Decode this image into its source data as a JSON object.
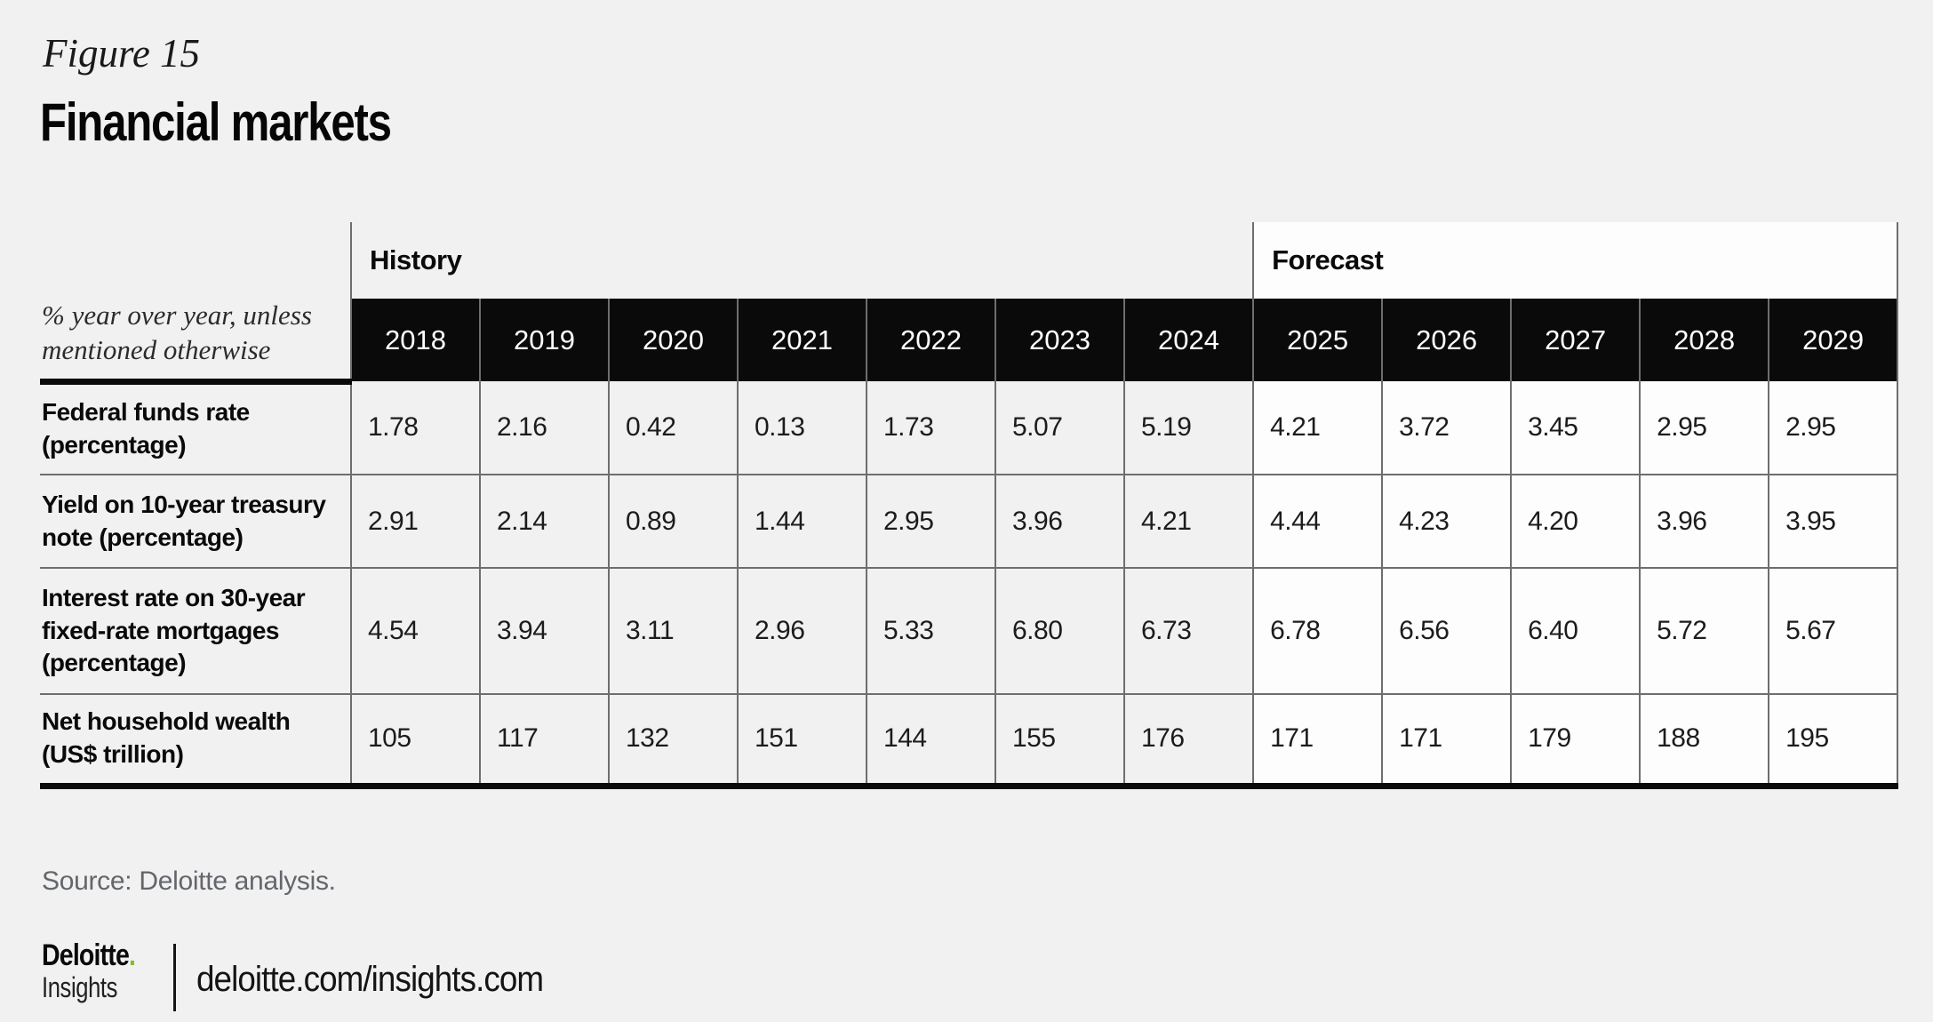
{
  "figure": {
    "label": "Figure 15",
    "title": "Financial markets"
  },
  "table": {
    "unit_note": "% year over year, unless mentioned otherwise",
    "groups": [
      {
        "label": "History",
        "span": 7
      },
      {
        "label": "Forecast",
        "span": 5
      }
    ],
    "history_count": 7,
    "years": [
      "2018",
      "2019",
      "2020",
      "2021",
      "2022",
      "2023",
      "2024",
      "2025",
      "2026",
      "2027",
      "2028",
      "2029"
    ],
    "rows": [
      {
        "label": "Federal funds rate (percentage)",
        "values": [
          "1.78",
          "2.16",
          "0.42",
          "0.13",
          "1.73",
          "5.07",
          "5.19",
          "4.21",
          "3.72",
          "3.45",
          "2.95",
          "2.95"
        ]
      },
      {
        "label": "Yield on 10-year treasury note (percentage)",
        "values": [
          "2.91",
          "2.14",
          "0.89",
          "1.44",
          "2.95",
          "3.96",
          "4.21",
          "4.44",
          "4.23",
          "4.20",
          "3.96",
          "3.95"
        ]
      },
      {
        "label": "Interest rate on 30-year fixed-rate mortgages (percentage)",
        "values": [
          "4.54",
          "3.94",
          "3.11",
          "2.96",
          "5.33",
          "6.80",
          "6.73",
          "6.78",
          "6.56",
          "6.40",
          "5.72",
          "5.67"
        ]
      },
      {
        "label": "Net household wealth (US$ trillion)",
        "values": [
          "105",
          "117",
          "132",
          "151",
          "144",
          "155",
          "176",
          "171",
          "171",
          "179",
          "188",
          "195"
        ]
      }
    ]
  },
  "footer": {
    "source": "Source: Deloitte analysis.",
    "logo_brand": "Deloitte",
    "logo_dot": ".",
    "logo_sub": "Insights",
    "url": "deloitte.com/insights.com"
  },
  "colors": {
    "background": "#f1f1f2",
    "forecast_white": "#fdfdfe",
    "grid_line": "#6e6e6e",
    "ink": "#0a0a0a",
    "deloitte_green": "#86bc25"
  },
  "chart_data": {
    "type": "table",
    "figure_label": "Figure 15",
    "title": "Financial markets",
    "unit_note": "% year over year, unless mentioned otherwise",
    "column_groups": [
      {
        "label": "History",
        "years": [
          2018,
          2019,
          2020,
          2021,
          2022,
          2023,
          2024
        ]
      },
      {
        "label": "Forecast",
        "years": [
          2025,
          2026,
          2027,
          2028,
          2029
        ]
      }
    ],
    "x": [
      2018,
      2019,
      2020,
      2021,
      2022,
      2023,
      2024,
      2025,
      2026,
      2027,
      2028,
      2029
    ],
    "series": [
      {
        "name": "Federal funds rate (percentage)",
        "values": [
          1.78,
          2.16,
          0.42,
          0.13,
          1.73,
          5.07,
          5.19,
          4.21,
          3.72,
          3.45,
          2.95,
          2.95
        ]
      },
      {
        "name": "Yield on 10-year treasury note (percentage)",
        "values": [
          2.91,
          2.14,
          0.89,
          1.44,
          2.95,
          3.96,
          4.21,
          4.44,
          4.23,
          4.2,
          3.96,
          3.95
        ]
      },
      {
        "name": "Interest rate on 30-year fixed-rate mortgages (percentage)",
        "values": [
          4.54,
          3.94,
          3.11,
          2.96,
          5.33,
          6.8,
          6.73,
          6.78,
          6.56,
          6.4,
          5.72,
          5.67
        ]
      },
      {
        "name": "Net household wealth (US$ trillion)",
        "values": [
          105,
          117,
          132,
          151,
          144,
          155,
          176,
          171,
          171,
          179,
          188,
          195
        ]
      }
    ],
    "source": "Source: Deloitte analysis."
  }
}
